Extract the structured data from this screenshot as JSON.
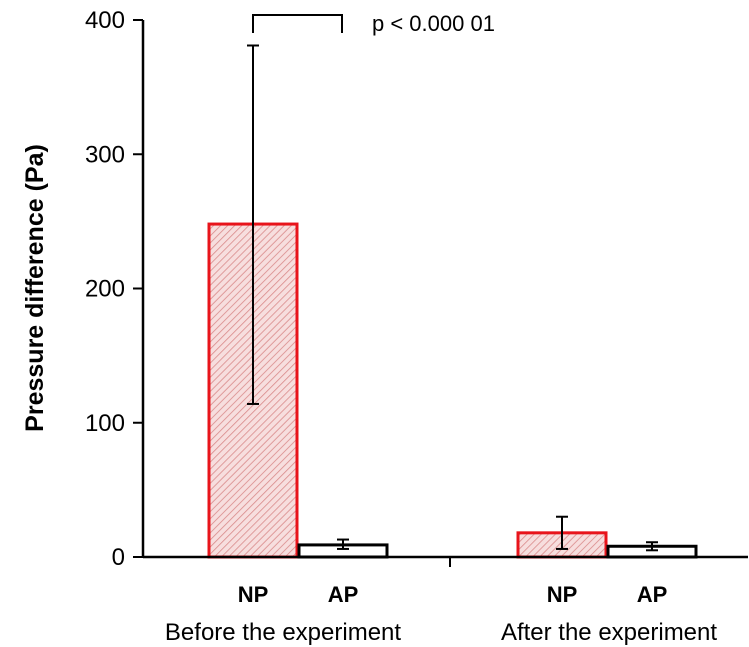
{
  "chart_data": {
    "type": "bar",
    "ylabel": "Pressure difference (Pa)",
    "ylim": [
      0,
      400
    ],
    "yticks": [
      0,
      100,
      200,
      300,
      400
    ],
    "groups": [
      {
        "label": "Before the experiment",
        "bars": [
          {
            "category": "NP",
            "value": 248,
            "error_low": 114,
            "error_high": 381,
            "fill": "hatched-red",
            "stroke": "#e8141b"
          },
          {
            "category": "AP",
            "value": 9,
            "error_low": 6,
            "error_high": 13,
            "fill": "white",
            "stroke": "#000000"
          }
        ]
      },
      {
        "label": "After the experiment",
        "bars": [
          {
            "category": "NP",
            "value": 18,
            "error_low": 6,
            "error_high": 30,
            "fill": "hatched-red",
            "stroke": "#e8141b"
          },
          {
            "category": "AP",
            "value": 8,
            "error_low": 5,
            "error_high": 11,
            "fill": "white",
            "stroke": "#000000"
          }
        ]
      }
    ],
    "annotation": {
      "text": "p < 0.000 01"
    },
    "grid": false,
    "legend": "none"
  }
}
